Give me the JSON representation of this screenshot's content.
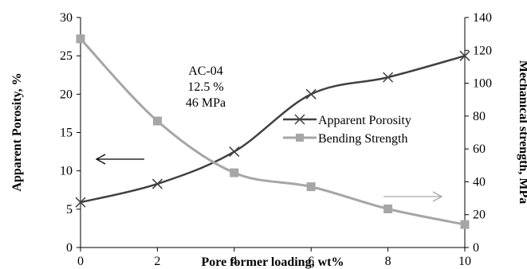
{
  "chart_data": {
    "type": "line",
    "xlabel": "Pore former loading, wt%",
    "ylabel_left": "Apparent Porosity, %",
    "ylabel_right": "Mechanical strength, MPa",
    "x_ticks": [
      "0",
      "2",
      "4",
      "6",
      "8",
      "10"
    ],
    "y_left_ticks": [
      "0",
      "5",
      "10",
      "15",
      "20",
      "25",
      "30"
    ],
    "y_right_ticks": [
      "0",
      "20",
      "40",
      "60",
      "80",
      "100",
      "120",
      "140"
    ],
    "xlim": [
      0,
      10
    ],
    "ylim_left": [
      0,
      30
    ],
    "ylim_right": [
      0,
      140
    ],
    "grid": false,
    "legend_position": "center-right",
    "series": [
      {
        "name": "Apparent Porosity",
        "axis": "left",
        "marker": "x",
        "color": "#404040",
        "x": [
          0,
          2,
          4,
          6,
          8,
          10
        ],
        "y": [
          5.9,
          8.3,
          12.5,
          20.0,
          22.2,
          25.0
        ]
      },
      {
        "name": "Bending Strength",
        "axis": "right",
        "marker": "square",
        "color": "#a6a6a6",
        "x": [
          0,
          2,
          4,
          6,
          8,
          10
        ],
        "y": [
          127,
          77,
          45.5,
          37,
          23.5,
          14
        ]
      }
    ],
    "annotations": {
      "lines": [
        "AC-04",
        "12.5 %",
        "46 MPa"
      ]
    }
  }
}
